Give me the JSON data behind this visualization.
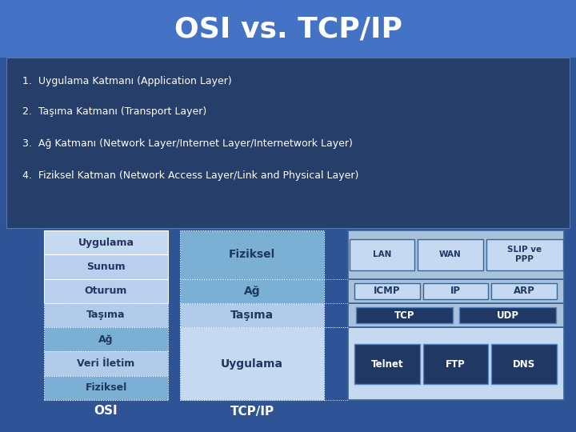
{
  "title": "OSI vs. TCP/IP",
  "title_color": "#FFFFFF",
  "title_bg": "#4472C4",
  "body_bg": "#2F5496",
  "bullet_bg": "#2A4A82",
  "bullet_points": [
    "1.  Uygulama Katmanı (Application Layer)",
    "2.  Taşıma Katmanı (Transport Layer)",
    "3.  Ağ Katmanı (Network Layer/Internet Layer/Internetwork Layer)",
    "4.  Fiziksel Katman (Network Access Layer/Link and Physical Layer)"
  ],
  "osi_layers": [
    "Uygulama",
    "Sunum",
    "Oturum",
    "Taşıma",
    "Ağ",
    "Veri İletim",
    "Fiziksel"
  ],
  "tcpip_layers": [
    "Uygulama",
    "Taşıma",
    "Ağ",
    "Fiziksel"
  ],
  "protocols_app": [
    "Telnet",
    "FTP",
    "DNS"
  ],
  "protocols_transport": [
    "TCP",
    "UDP"
  ],
  "protocols_network": [
    "ICMP",
    "IP",
    "ARP"
  ],
  "protocols_physical": [
    "LAN",
    "WAN",
    "SLIP ve\nPPP"
  ],
  "light_blue_1": "#C5D9F1",
  "light_blue_2": "#95B3D7",
  "medium_blue": "#4472C4",
  "darker_blue": "#5B9BD5",
  "dark_navy": "#1F3864",
  "proto_bg_dark": "#1F3864",
  "proto_bg_light": "#BDD7EE",
  "proto_container_light": "#A8C8E8",
  "label_osi": "OSI",
  "label_tcpip": "TCP/IP",
  "text_dark": "#1F3864",
  "text_light": "#FFFFFF",
  "dotted_color": "#AAAACC",
  "title_fontsize": 26,
  "bullet_fontsize": 9,
  "layer_fontsize": 9,
  "label_fontsize": 11
}
